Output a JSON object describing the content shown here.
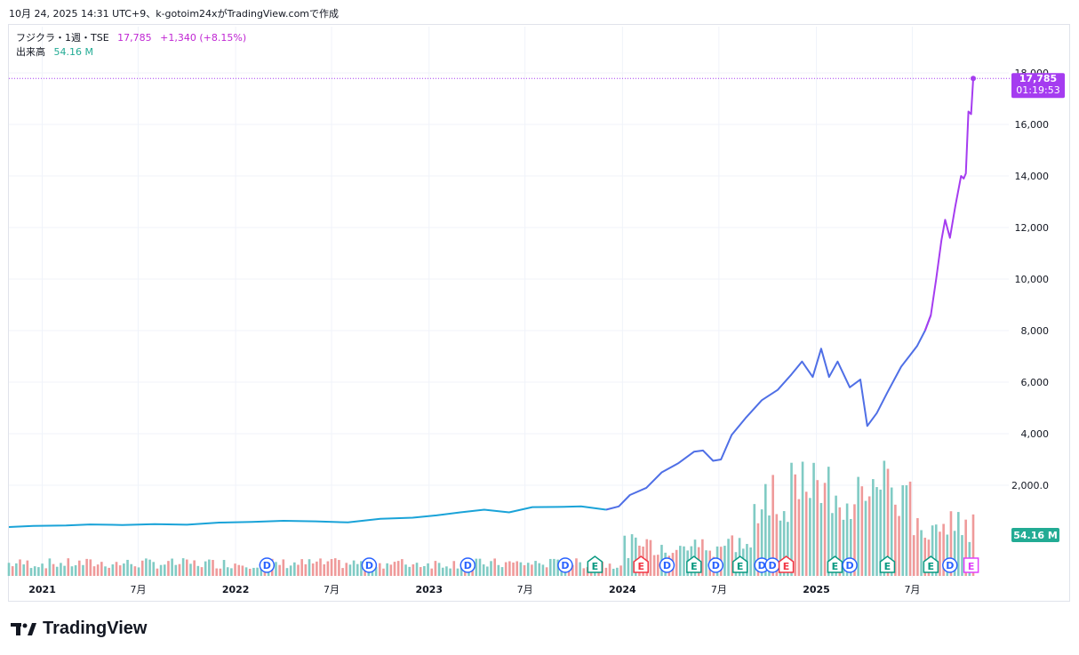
{
  "header": {
    "stamp": "10月 24, 2025 14:31 UTC+9、k-gotoim24xがTradingView.comで作成"
  },
  "legend": {
    "symbol": "フジクラ・1週・TSE",
    "price": "17,785",
    "change": "+1,340 (+8.15%)",
    "volume_label": "出来高",
    "volume_value": "54.16 M"
  },
  "price_tag": {
    "price": "17,785",
    "countdown": "01:19:53"
  },
  "volume_tag": "54.16 M",
  "footer": {
    "brand": "TradingView"
  },
  "colors": {
    "line_old": "#1aa3d8",
    "line_mid": "#4f6fe6",
    "line_new": "#a53cf0",
    "vol_up": "#80cbc4",
    "vol_down": "#ef9a9a",
    "dividend": "#2962ff",
    "earn_good": "#089981",
    "earn_bad": "#f23645",
    "earn_next": "#e040fb"
  },
  "chart_data": {
    "type": "line",
    "y_axis": {
      "min": 0,
      "max": 18000,
      "ticks": [
        "2,000.0",
        "4,000",
        "6,000",
        "8,000",
        "10,000",
        "12,000",
        "14,000",
        "16,000",
        "18,000"
      ],
      "tick_values": [
        2000,
        4000,
        6000,
        8000,
        10000,
        12000,
        14000,
        16000,
        18000
      ]
    },
    "x_axis": {
      "start": "2020-10-30",
      "end": "2025-10-24",
      "ticks": [
        {
          "label": "2021",
          "date": "2021-01-01",
          "bold": true
        },
        {
          "label": "7月",
          "date": "2021-07-01",
          "bold": false
        },
        {
          "label": "2022",
          "date": "2022-01-01",
          "bold": true
        },
        {
          "label": "7月",
          "date": "2022-07-01",
          "bold": false
        },
        {
          "label": "2023",
          "date": "2023-01-01",
          "bold": true
        },
        {
          "label": "7月",
          "date": "2023-07-01",
          "bold": false
        },
        {
          "label": "2024",
          "date": "2024-01-01",
          "bold": true
        },
        {
          "label": "7月",
          "date": "2024-07-01",
          "bold": false
        },
        {
          "label": "2025",
          "date": "2025-01-01",
          "bold": true
        },
        {
          "label": "7月",
          "date": "2025-07-01",
          "bold": false
        }
      ]
    },
    "price_series": [
      [
        "2020-10-30",
        380
      ],
      [
        "2020-12-15",
        420
      ],
      [
        "2021-02-15",
        440
      ],
      [
        "2021-04-01",
        480
      ],
      [
        "2021-06-01",
        460
      ],
      [
        "2021-08-01",
        490
      ],
      [
        "2021-10-01",
        470
      ],
      [
        "2021-12-01",
        550
      ],
      [
        "2022-02-01",
        580
      ],
      [
        "2022-04-01",
        620
      ],
      [
        "2022-06-01",
        600
      ],
      [
        "2022-08-01",
        560
      ],
      [
        "2022-10-01",
        700
      ],
      [
        "2022-12-01",
        740
      ],
      [
        "2023-01-15",
        830
      ],
      [
        "2023-03-01",
        950
      ],
      [
        "2023-04-15",
        1050
      ],
      [
        "2023-06-01",
        950
      ],
      [
        "2023-07-15",
        1150
      ],
      [
        "2023-09-01",
        1160
      ],
      [
        "2023-10-15",
        1180
      ],
      [
        "2023-12-01",
        1050
      ],
      [
        "2023-12-25",
        1180
      ],
      [
        "2024-01-15",
        1620
      ],
      [
        "2024-02-15",
        1900
      ],
      [
        "2024-03-15",
        2500
      ],
      [
        "2024-04-15",
        2850
      ],
      [
        "2024-05-15",
        3300
      ],
      [
        "2024-06-01",
        3350
      ],
      [
        "2024-06-20",
        2950
      ],
      [
        "2024-07-05",
        3000
      ],
      [
        "2024-07-25",
        3950
      ],
      [
        "2024-08-20",
        4600
      ],
      [
        "2024-09-20",
        5300
      ],
      [
        "2024-10-20",
        5700
      ],
      [
        "2024-11-15",
        6300
      ],
      [
        "2024-12-05",
        6800
      ],
      [
        "2024-12-25",
        6200
      ],
      [
        "2025-01-10",
        7300
      ],
      [
        "2025-01-25",
        6200
      ],
      [
        "2025-02-10",
        6800
      ],
      [
        "2025-03-05",
        5800
      ],
      [
        "2025-03-25",
        6100
      ],
      [
        "2025-04-07",
        4300
      ],
      [
        "2025-04-25",
        4800
      ],
      [
        "2025-05-15",
        5600
      ],
      [
        "2025-06-10",
        6600
      ],
      [
        "2025-06-25",
        7000
      ],
      [
        "2025-07-10",
        7400
      ],
      [
        "2025-07-25",
        8000
      ],
      [
        "2025-08-05",
        8600
      ],
      [
        "2025-08-15",
        10000
      ],
      [
        "2025-08-25",
        11500
      ],
      [
        "2025-09-01",
        12300
      ],
      [
        "2025-09-10",
        11600
      ],
      [
        "2025-09-20",
        12800
      ],
      [
        "2025-10-01",
        14000
      ],
      [
        "2025-10-06",
        13900
      ],
      [
        "2025-10-10",
        14100
      ],
      [
        "2025-10-15",
        16500
      ],
      [
        "2025-10-20",
        16400
      ],
      [
        "2025-10-24",
        17785
      ]
    ],
    "events": [
      {
        "type": "D",
        "date": "2022-03-01"
      },
      {
        "type": "D",
        "date": "2022-09-10"
      },
      {
        "type": "D",
        "date": "2023-03-15"
      },
      {
        "type": "D",
        "date": "2023-09-15"
      },
      {
        "type": "E",
        "date": "2023-11-10",
        "status": "good"
      },
      {
        "type": "E",
        "date": "2024-02-05",
        "status": "bad"
      },
      {
        "type": "D",
        "date": "2024-03-25"
      },
      {
        "type": "E",
        "date": "2024-05-15",
        "status": "good"
      },
      {
        "type": "D",
        "date": "2024-06-25"
      },
      {
        "type": "E",
        "date": "2024-08-10",
        "status": "good"
      },
      {
        "type": "D",
        "date": "2024-09-20"
      },
      {
        "type": "D",
        "date": "2024-10-10"
      },
      {
        "type": "E",
        "date": "2024-11-05",
        "status": "bad"
      },
      {
        "type": "E",
        "date": "2025-02-05",
        "status": "good"
      },
      {
        "type": "D",
        "date": "2025-03-05"
      },
      {
        "type": "E",
        "date": "2025-05-15",
        "status": "good"
      },
      {
        "type": "E",
        "date": "2025-08-05",
        "status": "good"
      },
      {
        "type": "D",
        "date": "2025-09-10"
      },
      {
        "type": "E",
        "date": "2025-10-20",
        "status": "next"
      }
    ]
  }
}
